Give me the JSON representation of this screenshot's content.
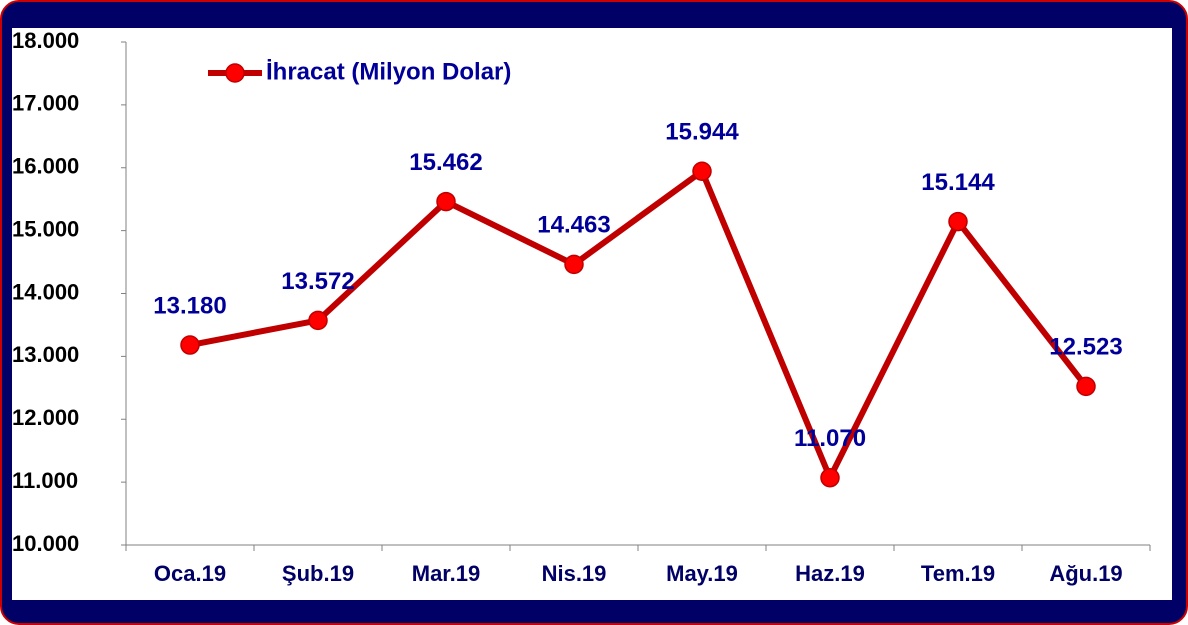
{
  "chart_data": {
    "type": "line",
    "categories": [
      "Oca.19",
      "Şub.19",
      "Mar.19",
      "Nis.19",
      "May.19",
      "Haz.19",
      "Tem.19",
      "Ağu.19"
    ],
    "series": [
      {
        "name": "İhracat (Milyon Dolar)",
        "color": "#c00000",
        "marker_color": "#ff0000",
        "values": [
          13180,
          13572,
          15462,
          14463,
          15944,
          11070,
          15144,
          12523
        ],
        "value_labels": [
          "13.180",
          "13.572",
          "15.462",
          "14.463",
          "15.944",
          "11.070",
          "15.144",
          "12.523"
        ]
      }
    ],
    "ylim": [
      10000,
      18000
    ],
    "yticks": [
      {
        "value": 10000,
        "label": "10.000"
      },
      {
        "value": 11000,
        "label": "11.000"
      },
      {
        "value": 12000,
        "label": "12.000"
      },
      {
        "value": 13000,
        "label": "13.000"
      },
      {
        "value": 14000,
        "label": "14.000"
      },
      {
        "value": 15000,
        "label": "15.000"
      },
      {
        "value": 16000,
        "label": "16.000"
      },
      {
        "value": 17000,
        "label": "17.000"
      },
      {
        "value": 18000,
        "label": "18.000"
      }
    ],
    "legend": "top-left"
  }
}
